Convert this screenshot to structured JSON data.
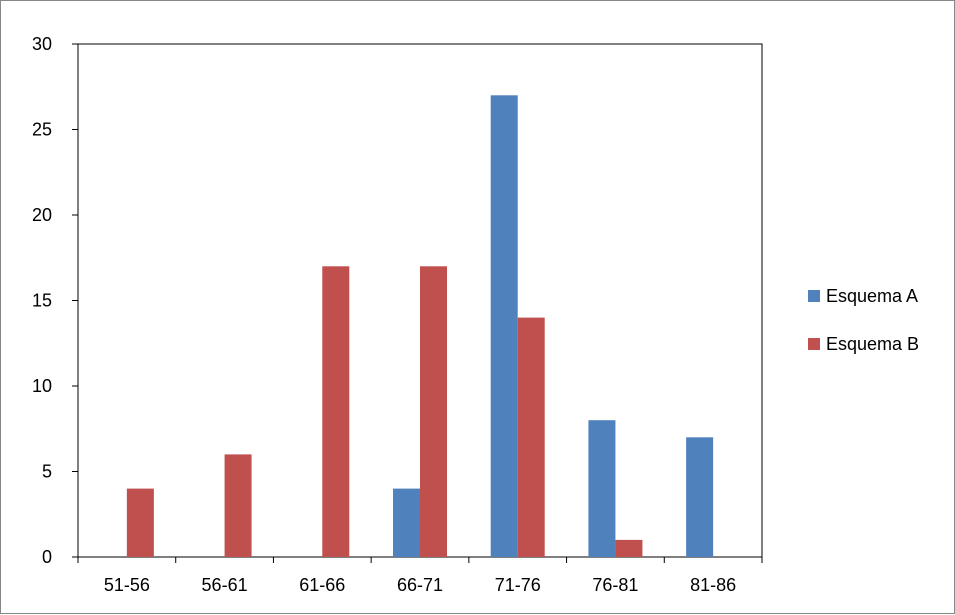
{
  "chart_data": {
    "type": "bar",
    "title": "",
    "xlabel": "",
    "ylabel": "",
    "categories": [
      "51-56",
      "56-61",
      "61-66",
      "66-71",
      "71-76",
      "76-81",
      "81-86"
    ],
    "series": [
      {
        "name": "Esquema A",
        "color": "#4F81BD",
        "values": [
          0,
          0,
          0,
          4,
          27,
          8,
          7
        ]
      },
      {
        "name": "Esquema B",
        "color": "#C0504D",
        "values": [
          4,
          6,
          17,
          17,
          14,
          1,
          0
        ]
      }
    ],
    "ylim": [
      0,
      30
    ],
    "yticks": [
      0,
      5,
      10,
      15,
      20,
      25,
      30
    ],
    "grid": false,
    "legend_position": "right"
  }
}
